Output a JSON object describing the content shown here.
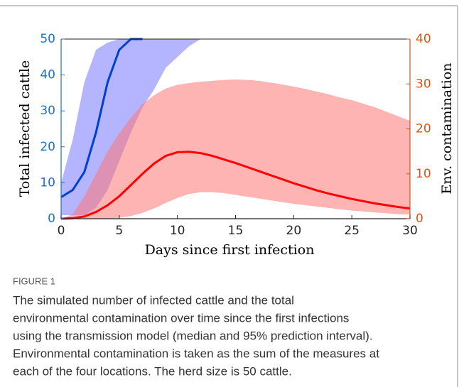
{
  "chart_data": {
    "type": "line",
    "xlabel": "Days since first infection",
    "ylabel": "Total infected cattle",
    "y2label": "Env. contamination",
    "x": [
      0,
      1,
      2,
      3,
      4,
      5,
      6,
      7,
      8,
      9,
      10,
      11,
      12,
      13,
      14,
      15,
      16,
      17,
      18,
      19,
      20,
      21,
      22,
      23,
      24,
      25,
      26,
      27,
      28,
      29,
      30
    ],
    "xlim": [
      0,
      30
    ],
    "xticks": [
      0,
      5,
      10,
      15,
      20,
      25,
      30
    ],
    "ylim": [
      0,
      50
    ],
    "yticks": [
      0,
      10,
      20,
      30,
      40,
      50
    ],
    "y2lim": [
      0,
      40
    ],
    "y2ticks": [
      0,
      10,
      20,
      30,
      40
    ],
    "ycolor": "#1f6fc5",
    "y2color": "#d95319",
    "series": [
      {
        "color": "#0040d0",
        "band_color": "#7777ff",
        "values": [
          6,
          8,
          13,
          24,
          38,
          47,
          50,
          50,
          null,
          null,
          null,
          null,
          null,
          null,
          null,
          null,
          null,
          null,
          null,
          null,
          null,
          null,
          null,
          null,
          null,
          null,
          null,
          null,
          null,
          null,
          null
        ],
        "lower": [
          1,
          1,
          1,
          3,
          8,
          16,
          24,
          31,
          36,
          42,
          45,
          48,
          50,
          null,
          null,
          null,
          null,
          null,
          null,
          null,
          null,
          null,
          null,
          null,
          null,
          null,
          null,
          null,
          null,
          null,
          null
        ],
        "upper": [
          10,
          22,
          38,
          47,
          49,
          50,
          50,
          50,
          50,
          50,
          50,
          50,
          50,
          null,
          null,
          null,
          null,
          null,
          null,
          null,
          null,
          null,
          null,
          null,
          null,
          null,
          null,
          null,
          null,
          null,
          null
        ]
      },
      {
        "color": "#ff0000",
        "band_color": "#ff7777",
        "axis": "y2",
        "values": [
          0,
          0.1,
          0.5,
          1.5,
          3,
          5,
          7.5,
          10,
          12.3,
          14,
          14.8,
          14.9,
          14.6,
          14,
          13.2,
          12.4,
          11.5,
          10.6,
          9.7,
          8.8,
          7.9,
          7.1,
          6.3,
          5.6,
          5,
          4.4,
          3.9,
          3.4,
          3,
          2.6,
          2.3
        ],
        "lower": [
          0,
          0,
          0,
          0,
          0,
          0.2,
          0.6,
          1.3,
          2.3,
          3.5,
          4.6,
          5.5,
          5.9,
          5.9,
          5.7,
          5.3,
          4.9,
          4.5,
          4.1,
          3.7,
          3.3,
          3,
          2.7,
          2.4,
          2.1,
          1.8,
          1.6,
          1.4,
          1.2,
          1,
          0.9
        ],
        "upper": [
          0,
          1,
          5,
          10,
          15,
          19,
          22.5,
          25.5,
          27.5,
          29,
          29.8,
          30.2,
          30.5,
          30.7,
          30.9,
          31,
          30.9,
          30.7,
          30.3,
          29.9,
          29.4,
          28.9,
          28.3,
          27.7,
          27,
          26.4,
          25.6,
          24.8,
          23.8,
          22.8,
          21.8
        ]
      }
    ]
  },
  "caption": {
    "label": "FIGURE 1",
    "lines": [
      "The simulated number of infected cattle and the total",
      "environmental contamination over time since the first infections",
      "using the transmission model (median and 95% prediction interval).",
      "Environmental contamination is taken as the sum of the measures at",
      "each of the four locations. The herd size is 50 cattle."
    ]
  }
}
